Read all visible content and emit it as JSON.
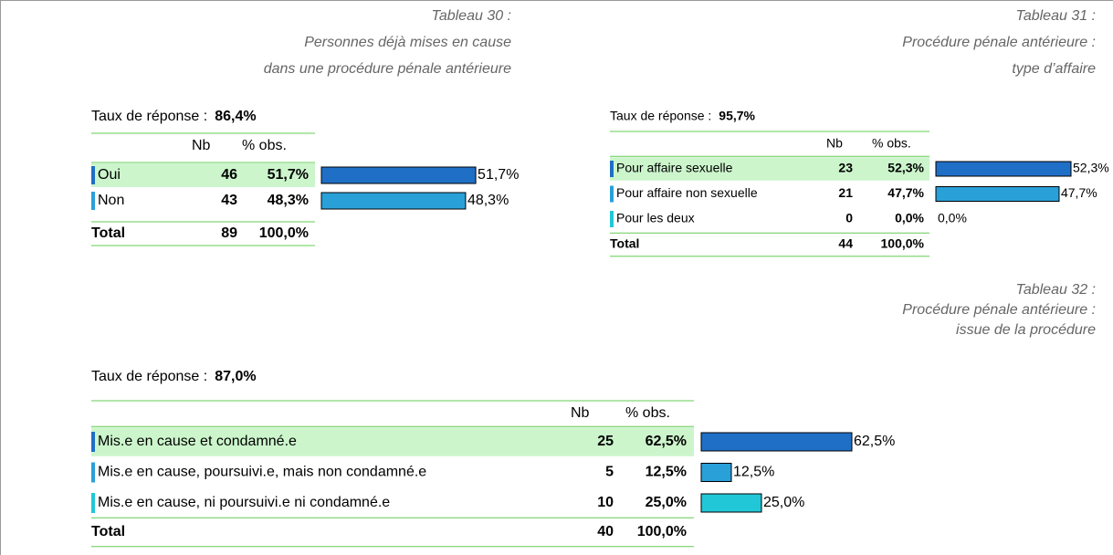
{
  "tables": [
    {
      "title": [
        "Tableau 30 :",
        "Personnes déjà mises en cause",
        "dans une procédure pénale antérieure"
      ],
      "response_label": "Taux de réponse :",
      "response_rate": "86,4%",
      "headers": [
        "Nb",
        "% obs."
      ],
      "rows": [
        {
          "label": "Oui",
          "nb": 46,
          "pct": "51,7%"
        },
        {
          "label": "Non",
          "nb": 43,
          "pct": "48,3%"
        }
      ],
      "total": {
        "label": "Total",
        "nb": 89,
        "pct": "100,0%"
      }
    },
    {
      "title": [
        "Tableau 31 :",
        "Procédure pénale antérieure :",
        "type d’affaire"
      ],
      "response_label": "Taux de réponse :",
      "response_rate": "95,7%",
      "headers": [
        "Nb",
        "% obs."
      ],
      "rows": [
        {
          "label": "Pour affaire sexuelle",
          "nb": 23,
          "pct": "52,3%"
        },
        {
          "label": "Pour affaire non sexuelle",
          "nb": 21,
          "pct": "47,7%"
        },
        {
          "label": "Pour les deux",
          "nb": 0,
          "pct": "0,0%"
        }
      ],
      "total": {
        "label": "Total",
        "nb": 44,
        "pct": "100,0%"
      }
    },
    {
      "title": [
        "Tableau 32 :",
        "Procédure pénale antérieure :",
        "issue de la procédure"
      ],
      "response_label": "Taux de réponse :",
      "response_rate": "87,0%",
      "headers": [
        "Nb",
        "% obs."
      ],
      "rows": [
        {
          "label": "Mis.e en cause et condamné.e",
          "nb": 25,
          "pct": "62,5%"
        },
        {
          "label": "Mis.e en cause, poursuivi.e, mais non condamné.e",
          "nb": 5,
          "pct": "12,5%"
        },
        {
          "label": "Mis.e en cause, ni poursuivi.e ni condamné.e",
          "nb": 10,
          "pct": "25,0%"
        }
      ],
      "total": {
        "label": "Total",
        "nb": 40,
        "pct": "100,0%"
      }
    }
  ]
}
